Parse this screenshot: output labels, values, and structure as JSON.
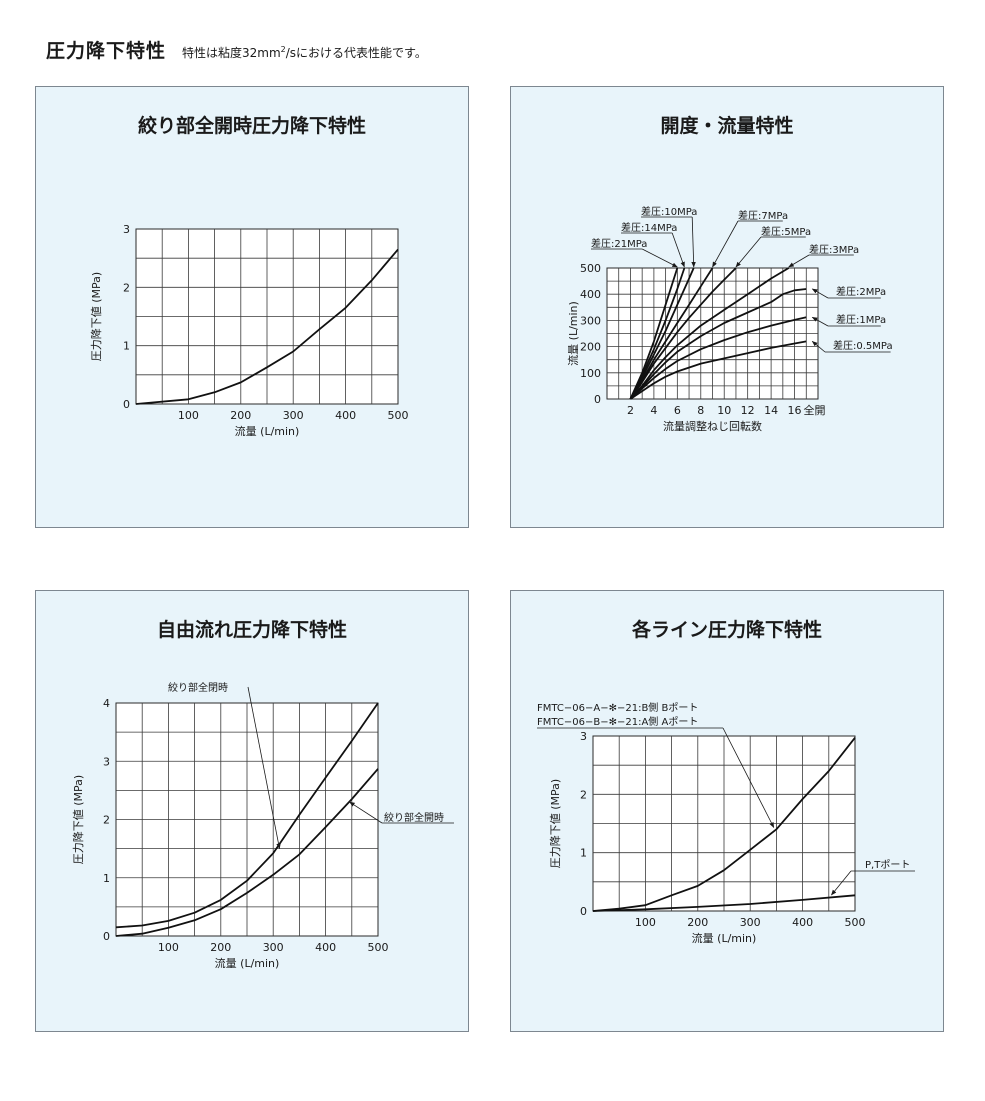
{
  "header": {
    "title": "圧力降下特性",
    "note_pre": "特性は粘度32mm",
    "note_sup": "2",
    "note_post": "/sにおける代表性能です。"
  },
  "chart_data": [
    {
      "type": "line",
      "title": "絞り部全開時圧力降下特性",
      "xlabel": "流量 (L/min)",
      "ylabel": "圧力降下値 (MPa)",
      "xlim": [
        0,
        500
      ],
      "ylim": [
        0,
        3
      ],
      "x_ticks": [
        100,
        200,
        300,
        400,
        500
      ],
      "y_ticks": [
        0,
        1,
        2,
        3
      ],
      "x_grid": 10,
      "y_grid": 6,
      "series": [
        {
          "x": [
            0,
            100,
            150,
            200,
            250,
            300,
            350,
            400,
            450,
            500
          ],
          "y": [
            0,
            0.08,
            0.2,
            0.37,
            0.63,
            0.9,
            1.28,
            1.65,
            2.12,
            2.65
          ]
        }
      ]
    },
    {
      "type": "line",
      "title": "開度・流量特性",
      "xlabel": "流量調整ねじ回転数",
      "ylabel": "流量 (L/min)",
      "xlim": [
        0,
        18
      ],
      "ylim": [
        0,
        500
      ],
      "x_ticks": [
        2,
        4,
        6,
        8,
        10,
        12,
        14,
        16
      ],
      "x_end_label": "全開",
      "y_ticks": [
        0,
        100,
        200,
        300,
        400,
        500
      ],
      "x_grid": 18,
      "y_grid": 10,
      "series": [
        {
          "name": "差圧:21MPa",
          "x": [
            2,
            3,
            4,
            5,
            6
          ],
          "y": [
            0,
            100,
            220,
            360,
            500
          ]
        },
        {
          "name": "差圧:14MPa",
          "x": [
            2,
            3,
            4,
            5,
            6,
            6.6
          ],
          "y": [
            0,
            90,
            190,
            300,
            420,
            500
          ]
        },
        {
          "name": "差圧:10MPa",
          "x": [
            2,
            3,
            4,
            5,
            6,
            7,
            7.4
          ],
          "y": [
            0,
            80,
            170,
            260,
            360,
            460,
            500
          ]
        },
        {
          "name": "差圧:7MPa",
          "x": [
            2,
            3,
            4,
            5,
            6,
            7,
            8,
            9
          ],
          "y": [
            0,
            70,
            150,
            220,
            290,
            360,
            430,
            500
          ]
        },
        {
          "name": "差圧:5MPa",
          "x": [
            2,
            3,
            4,
            5,
            6,
            7,
            8,
            9,
            10,
            11
          ],
          "y": [
            0,
            65,
            135,
            195,
            255,
            310,
            360,
            410,
            455,
            500
          ]
        },
        {
          "name": "差圧:3MPa",
          "x": [
            2,
            3,
            4,
            5,
            6,
            8,
            10,
            12,
            14,
            15.5
          ],
          "y": [
            0,
            50,
            110,
            160,
            205,
            280,
            340,
            400,
            460,
            500
          ]
        },
        {
          "name": "差圧:2MPa",
          "x": [
            2,
            3,
            4,
            5,
            6,
            8,
            10,
            12,
            14,
            15,
            16,
            17
          ],
          "y": [
            0,
            45,
            95,
            140,
            180,
            240,
            290,
            330,
            370,
            400,
            415,
            420
          ]
        },
        {
          "name": "差圧:1MPa",
          "x": [
            2,
            3,
            4,
            5,
            6,
            8,
            10,
            12,
            14,
            16,
            17
          ],
          "y": [
            0,
            40,
            80,
            115,
            145,
            190,
            225,
            255,
            280,
            302,
            312
          ]
        },
        {
          "name": "差圧:0.5MPa",
          "x": [
            2,
            3,
            4,
            5,
            6,
            8,
            10,
            12,
            14,
            16,
            17
          ],
          "y": [
            0,
            30,
            60,
            85,
            105,
            135,
            155,
            175,
            195,
            212,
            220
          ]
        }
      ]
    },
    {
      "type": "line",
      "title": "自由流れ圧力降下特性",
      "xlabel": "流量 (L/min)",
      "ylabel": "圧力降下値 (MPa)",
      "xlim": [
        0,
        500
      ],
      "ylim": [
        0,
        4
      ],
      "x_ticks": [
        100,
        200,
        300,
        400,
        500
      ],
      "y_ticks": [
        0,
        1,
        2,
        3,
        4
      ],
      "x_grid": 10,
      "y_grid": 8,
      "series": [
        {
          "name": "絞り部全閉時",
          "x": [
            0,
            50,
            100,
            150,
            200,
            250,
            300,
            350,
            400,
            450,
            500
          ],
          "y": [
            0.15,
            0.18,
            0.26,
            0.4,
            0.62,
            0.95,
            1.42,
            2.08,
            2.72,
            3.35,
            4.0
          ]
        },
        {
          "name": "絞り部全開時",
          "x": [
            0,
            50,
            100,
            150,
            200,
            250,
            300,
            350,
            400,
            450,
            500
          ],
          "y": [
            0,
            0.04,
            0.14,
            0.27,
            0.46,
            0.74,
            1.05,
            1.4,
            1.87,
            2.35,
            2.87
          ]
        }
      ]
    },
    {
      "type": "line",
      "title": "各ライン圧力降下特性",
      "xlabel": "流量 (L/min)",
      "ylabel": "圧力降下値 (MPa)",
      "xlim": [
        0,
        500
      ],
      "ylim": [
        0,
        3
      ],
      "x_ticks": [
        100,
        200,
        300,
        400,
        500
      ],
      "y_ticks": [
        0,
        1,
        2,
        3
      ],
      "x_grid": 10,
      "y_grid": 6,
      "series": [
        {
          "name": "FMTC−06−A−✻−21:B側 Bポート / FMTC−06−B−✻−21:A側 Aポート",
          "x": [
            0,
            50,
            100,
            150,
            200,
            250,
            300,
            350,
            400,
            450,
            500
          ],
          "y": [
            0,
            0.04,
            0.1,
            0.27,
            0.43,
            0.7,
            1.05,
            1.4,
            1.92,
            2.4,
            2.97
          ]
        },
        {
          "name": "P,Tポート",
          "x": [
            0,
            100,
            200,
            300,
            400,
            500
          ],
          "y": [
            0,
            0.03,
            0.07,
            0.12,
            0.19,
            0.27
          ]
        }
      ]
    }
  ],
  "labels": {
    "c2_21": "差圧:21MPa",
    "c2_14": "差圧:14MPa",
    "c2_10": "差圧:10MPa",
    "c2_7": "差圧:7MPa",
    "c2_5": "差圧:5MPa",
    "c2_3": "差圧:3MPa",
    "c2_2": "差圧:2MPa",
    "c2_1": "差圧:1MPa",
    "c2_05": "差圧:0.5MPa",
    "c3_closed": "絞り部全閉時",
    "c3_open": "絞り部全開時",
    "c4_ab_1": "FMTC−06−A−✻−21:B側 Bポート",
    "c4_ab_2": "FMTC−06−B−✻−21:A側 Aポート",
    "c4_pt": "P,Tポート"
  }
}
